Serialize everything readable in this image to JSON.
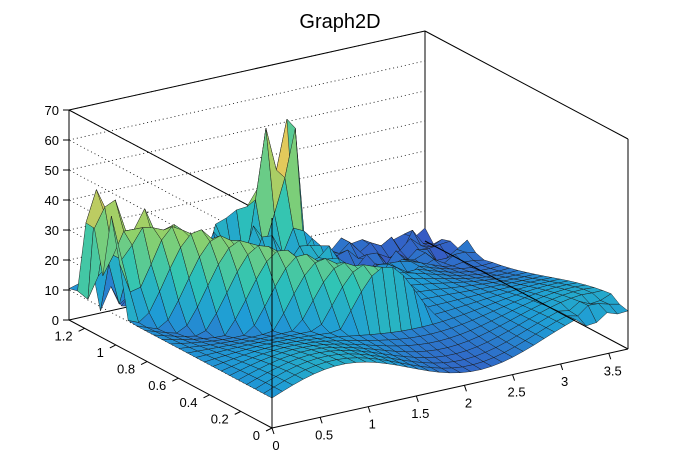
{
  "chart_data": {
    "type": "surface",
    "title": "Graph2D",
    "xlabel": "",
    "ylabel": "",
    "zlabel": "",
    "xlim": [
      0,
      3.7
    ],
    "ylim": [
      0,
      1.3
    ],
    "zlim": [
      0,
      70
    ],
    "x_ticks": [
      "0",
      "0.5",
      "1",
      "1.5",
      "2",
      "2.5",
      "3",
      "3.5"
    ],
    "y_ticks": [
      "0",
      "0.2",
      "0.4",
      "0.6",
      "0.8",
      "1",
      "1.2"
    ],
    "z_ticks": [
      "0",
      "10",
      "20",
      "30",
      "40",
      "50",
      "60",
      "70"
    ],
    "grid": true,
    "colormap": [
      "#3b4cc0",
      "#1f9bd6",
      "#2ec4b6",
      "#8fd16a",
      "#e8c85a"
    ],
    "peaks": [
      {
        "x": 2.15,
        "y": 1.22,
        "z": 64
      },
      {
        "x": 0.02,
        "y": 1.02,
        "z": 44
      },
      {
        "x": 1.95,
        "y": 1.25,
        "z": 52
      }
    ],
    "plateau": {
      "x_from": 0.3,
      "x_to": 1.6,
      "y_from": 0.55,
      "y_to": 1.1,
      "z": 38
    }
  }
}
